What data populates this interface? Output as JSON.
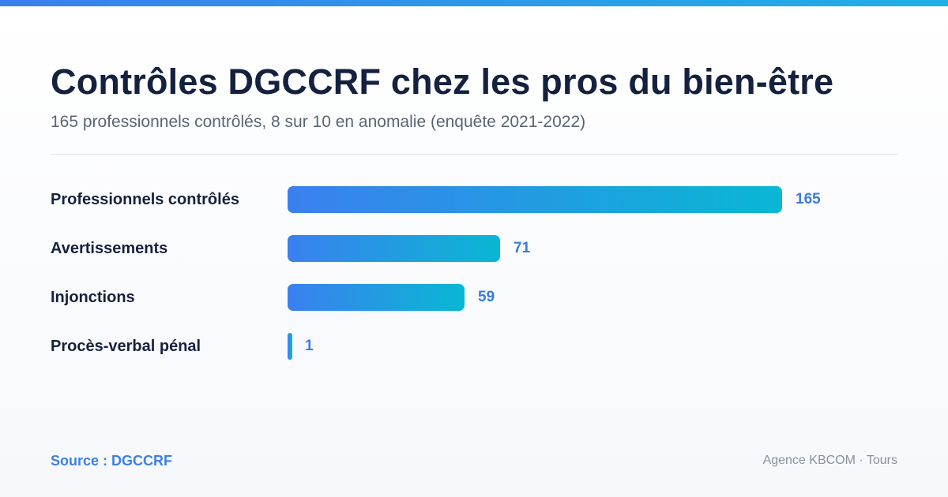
{
  "header": {
    "title": "Contrôles DGCCRF chez les pros du bien-être",
    "subtitle": "165 professionnels contrôlés, 8 sur 10 en anomalie (enquête 2021-2022)"
  },
  "footer": {
    "source": "Source : DGCCRF",
    "credit": "Agence KBCOM · Tours"
  },
  "colors": {
    "accent": "#3b80ef",
    "bar_start": "#3b80ef",
    "bar_end": "#09b7d3",
    "value_text": "#3a7be0"
  },
  "chart_data": {
    "type": "bar",
    "orientation": "horizontal",
    "categories": [
      "Professionnels contrôlés",
      "Avertissements",
      "Injonctions",
      "Procès-verbal pénal"
    ],
    "values": [
      165,
      71,
      59,
      1
    ],
    "value_labels": [
      "165",
      "71",
      "59",
      "1"
    ],
    "xlim": [
      0,
      165
    ],
    "grid": false,
    "legend": "none"
  }
}
